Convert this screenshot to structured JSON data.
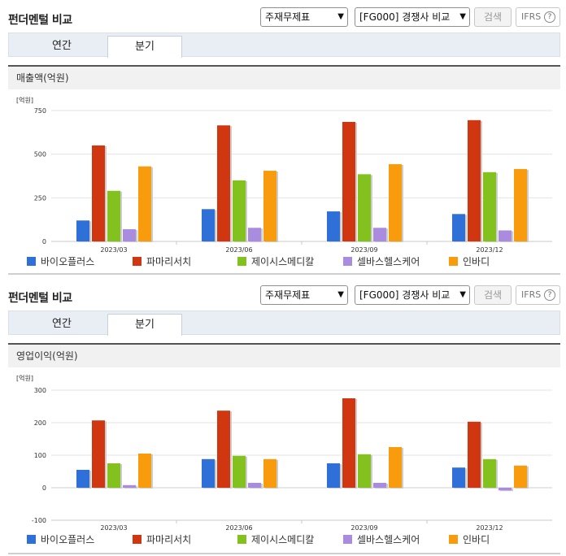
{
  "sections": [
    {
      "title": "펀더멘털 비교",
      "select1": "주재무제표",
      "select2": "[FG000] 경쟁사 비교",
      "search_label": "검색",
      "ifrs_label": "IFRS",
      "ifrs_help": "?",
      "tabs": [
        "연간",
        "분기"
      ],
      "active_tab": "분기",
      "metric_title": "매출액(억원)"
    },
    {
      "title": "펀더멘털 비교",
      "select1": "주재무제표",
      "select2": "[FG000] 경쟁사 비교",
      "search_label": "검색",
      "ifrs_label": "IFRS",
      "ifrs_help": "?",
      "tabs": [
        "연간",
        "분기"
      ],
      "active_tab": "분기",
      "metric_title": "영업이익(억원)"
    }
  ],
  "chart_data": [
    {
      "type": "bar",
      "title": "매출액(억원)",
      "unit_label": "[억원]",
      "categories": [
        "2023/03",
        "2023/06",
        "2023/09",
        "2023/12"
      ],
      "ylim": [
        0,
        750
      ],
      "yticks": [
        0,
        250,
        500,
        750
      ],
      "grid": true,
      "legend_position": "bottom",
      "series": [
        {
          "name": "바이오플러스",
          "color": "#2e6fd8",
          "values": [
            120,
            185,
            172,
            157
          ]
        },
        {
          "name": "파마리서치",
          "color": "#d0360f",
          "values": [
            550,
            665,
            685,
            695
          ]
        },
        {
          "name": "제이시스메디칼",
          "color": "#83c11f",
          "values": [
            290,
            350,
            385,
            397
          ]
        },
        {
          "name": "셀바스헬스케어",
          "color": "#a98be0",
          "values": [
            70,
            78,
            78,
            63
          ]
        },
        {
          "name": "인바디",
          "color": "#f89c0e",
          "values": [
            430,
            405,
            443,
            415
          ]
        }
      ]
    },
    {
      "type": "bar",
      "title": "영업이익(억원)",
      "unit_label": "[억원]",
      "categories": [
        "2023/03",
        "2023/06",
        "2023/09",
        "2023/12"
      ],
      "ylim": [
        -100,
        300
      ],
      "yticks": [
        -100,
        0,
        100,
        200,
        300
      ],
      "grid": true,
      "legend_position": "bottom",
      "series": [
        {
          "name": "바이오플러스",
          "color": "#2e6fd8",
          "values": [
            55,
            88,
            75,
            62
          ]
        },
        {
          "name": "파마리서치",
          "color": "#d0360f",
          "values": [
            207,
            237,
            275,
            203
          ]
        },
        {
          "name": "제이시스메디칼",
          "color": "#83c11f",
          "values": [
            75,
            98,
            103,
            88
          ]
        },
        {
          "name": "셀바스헬스케어",
          "color": "#a98be0",
          "values": [
            8,
            15,
            15,
            -8
          ]
        },
        {
          "name": "인바디",
          "color": "#f89c0e",
          "values": [
            105,
            88,
            125,
            68
          ]
        }
      ]
    }
  ]
}
